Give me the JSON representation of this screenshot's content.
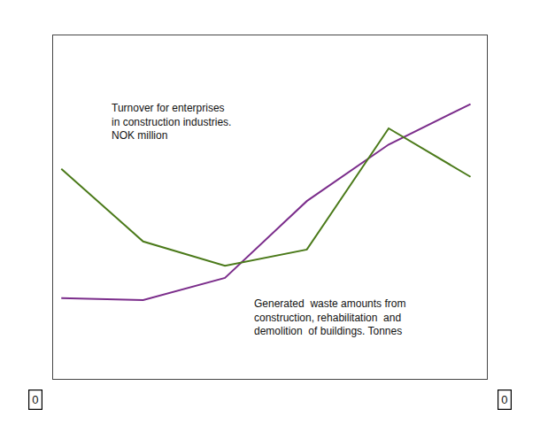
{
  "chart_data": {
    "type": "line",
    "x": [
      0,
      1,
      2,
      3,
      4,
      5
    ],
    "series": [
      {
        "color": "#7B2D8B",
        "values": [
          0.3,
          0.295,
          0.35,
          0.54,
          0.68,
          0.78
        ]
      },
      {
        "color": "#4B7A1A",
        "values": [
          0.62,
          0.44,
          0.38,
          0.42,
          0.72,
          0.6
        ]
      }
    ],
    "xlim": [
      -0.1,
      5.2
    ],
    "ylim": [
      0.1,
      0.95
    ],
    "grid": false,
    "tick_labels": false,
    "annotations": [
      "Turnover for enterprises\nin construction industries.\nNOK million",
      "Generated  waste amounts from\nconstruction, rehabilitation  and\ndemolition  of buildings. Tonnes",
      "0",
      "0"
    ]
  }
}
